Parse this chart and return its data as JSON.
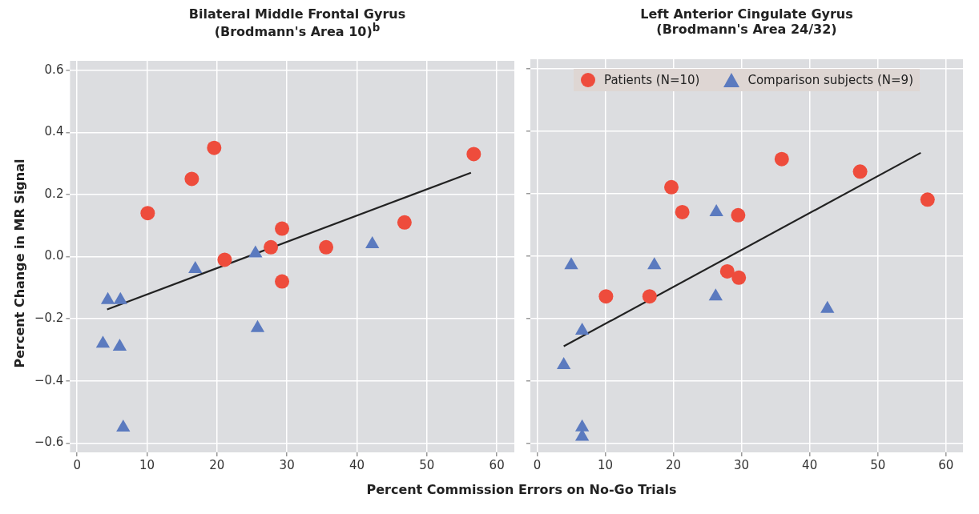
{
  "chart_data": [
    {
      "type": "scatter",
      "title": "Bilateral Middle Frontal Gyrus\n(Brodmann's Area 10)$^{b}$",
      "xlabel": "Percent Commission Errors on No-Go Trials",
      "ylabel": "Percent Change in MR Signal",
      "xlim": [
        -1,
        62.5
      ],
      "ylim": [
        -0.63,
        0.63
      ],
      "xticks": [
        0,
        10,
        20,
        30,
        40,
        50,
        60
      ],
      "yticks": [
        {
          "value": -0.6,
          "label": "−0.6"
        },
        {
          "value": -0.4,
          "label": "−0.4"
        },
        {
          "value": -0.2,
          "label": "−0.2"
        },
        {
          "value": 0,
          "label": "0.0"
        },
        0.2,
        0.4,
        0.6
      ],
      "grid": true,
      "legend": false,
      "series": [
        {
          "type": "scatter",
          "marker": "circle",
          "color": "#ee4c3c",
          "x": [
            10.1,
            16.4,
            19.6,
            21.1,
            27.7,
            29.3,
            29.3,
            35.6,
            46.8,
            56.7
          ],
          "values": [
            0.14,
            0.25,
            0.35,
            -0.01,
            0.03,
            0.09,
            -0.08,
            0.03,
            0.11,
            0.33
          ]
        },
        {
          "type": "scatter",
          "marker": "triangle",
          "color": "#5b7abf",
          "x": [
            4.4,
            6.2,
            3.7,
            6.1,
            6.6,
            16.9,
            25.5,
            25.8,
            42.2
          ],
          "values": [
            -0.14,
            -0.14,
            -0.28,
            -0.29,
            -0.55,
            -0.04,
            0.01,
            -0.23,
            0.04
          ]
        },
        {
          "type": "line",
          "marker": "none",
          "color": "#222222",
          "x": [
            4.3,
            56.3
          ],
          "values": [
            -0.17,
            0.27
          ]
        }
      ]
    },
    {
      "type": "scatter",
      "title": "Left Anterior Cingulate Gyrus\n(Brodmann's Area 24/32)",
      "xlim": [
        -1,
        62.5
      ],
      "ylim": [
        -0.63,
        0.63
      ],
      "xticks": [
        0,
        10,
        20,
        30,
        40,
        50,
        60
      ],
      "yticks": [
        -0.6,
        -0.4,
        -0.2,
        0.0,
        0.2,
        0.4,
        0.6
      ],
      "tick_labels": "x",
      "grid": true,
      "legend": "top",
      "series": [
        {
          "type": "scatter",
          "name": "Patients (N=10)",
          "marker": "circle",
          "color": "#ee4c3c",
          "x": [
            10.1,
            16.5,
            19.7,
            21.3,
            35.9,
            29.5,
            27.9,
            29.6,
            47.4,
            57.3
          ],
          "values": [
            -0.13,
            -0.13,
            0.22,
            0.14,
            0.31,
            0.13,
            -0.05,
            -0.07,
            0.27,
            0.18
          ]
        },
        {
          "type": "scatter",
          "name": "Comparison subjects (N=9)",
          "marker": "triangle",
          "color": "#5b7abf",
          "x": [
            5.0,
            17.2,
            26.3,
            26.2,
            42.6,
            6.6,
            3.9,
            6.6,
            6.6
          ],
          "values": [
            -0.03,
            -0.03,
            0.14,
            -0.13,
            -0.17,
            -0.24,
            -0.35,
            -0.55,
            -0.58
          ]
        },
        {
          "type": "line",
          "marker": "none",
          "color": "#222222",
          "x": [
            3.9,
            56.3
          ],
          "values": [
            -0.29,
            0.33
          ]
        }
      ]
    }
  ]
}
